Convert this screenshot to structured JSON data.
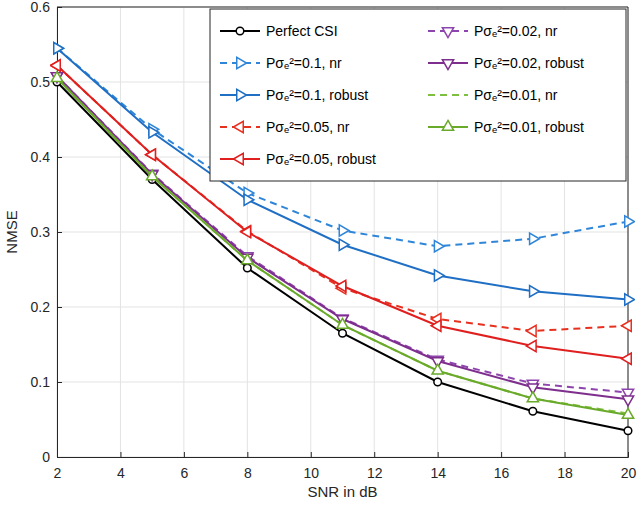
{
  "chart_data": {
    "type": "line",
    "x_label": "SNR in dB",
    "y_label": "NMSE",
    "x": [
      2,
      5,
      8,
      11,
      14,
      17,
      20
    ],
    "xlim": [
      2,
      20
    ],
    "xticks": [
      2,
      4,
      6,
      8,
      10,
      12,
      14,
      16,
      18,
      20
    ],
    "ylim": [
      0,
      0.6
    ],
    "yticks": [
      0,
      0.1,
      0.2,
      0.3,
      0.4,
      0.5,
      0.6
    ],
    "grid": true,
    "legend": "top-right",
    "series": [
      {
        "name": "Perfect CSI",
        "color": "#000000",
        "marker": "circle",
        "line_style": "solid",
        "values": [
          0.5,
          0.37,
          0.252,
          0.165,
          0.1,
          0.061,
          0.035
        ]
      },
      {
        "name": "Pσₑ²=0.1, nr",
        "color": "#2f86d9",
        "marker": "triangle-right",
        "line_style": "dashed",
        "values": [
          0.545,
          0.437,
          0.352,
          0.302,
          0.281,
          0.291,
          0.314
        ]
      },
      {
        "name": "Pσₑ²=0.1, robust",
        "color": "#1f6fc4",
        "marker": "triangle-right",
        "line_style": "solid",
        "values": [
          0.545,
          0.433,
          0.343,
          0.283,
          0.242,
          0.221,
          0.21
        ]
      },
      {
        "name": "Pσₑ²=0.05, nr",
        "color": "#e8301f",
        "marker": "triangle-left",
        "line_style": "dashed",
        "values": [
          0.522,
          0.403,
          0.301,
          0.225,
          0.184,
          0.168,
          0.175
        ]
      },
      {
        "name": "Pσₑ²=0.05, robust",
        "color": "#e01f1f",
        "marker": "triangle-left",
        "line_style": "solid",
        "values": [
          0.522,
          0.403,
          0.3,
          0.228,
          0.175,
          0.148,
          0.131
        ]
      },
      {
        "name": "Pσₑ²=0.02, nr",
        "color": "#8e44ad",
        "marker": "triangle-down",
        "line_style": "dashed",
        "values": [
          0.508,
          0.378,
          0.268,
          0.185,
          0.13,
          0.098,
          0.086
        ]
      },
      {
        "name": "Pσₑ²=0.02, robust",
        "color": "#7e2f8e",
        "marker": "triangle-down",
        "line_style": "solid",
        "values": [
          0.508,
          0.377,
          0.266,
          0.184,
          0.128,
          0.093,
          0.077
        ]
      },
      {
        "name": "Pσₑ²=0.01, nr",
        "color": "#7fbf3f",
        "marker": "none",
        "line_style": "dashed",
        "values": [
          0.505,
          0.374,
          0.262,
          0.176,
          0.115,
          0.078,
          0.058
        ]
      },
      {
        "name": "Pσₑ²=0.01, robust",
        "color": "#6aaa2a",
        "marker": "triangle-up",
        "line_style": "solid",
        "values": [
          0.505,
          0.374,
          0.262,
          0.176,
          0.115,
          0.078,
          0.056
        ]
      }
    ]
  }
}
